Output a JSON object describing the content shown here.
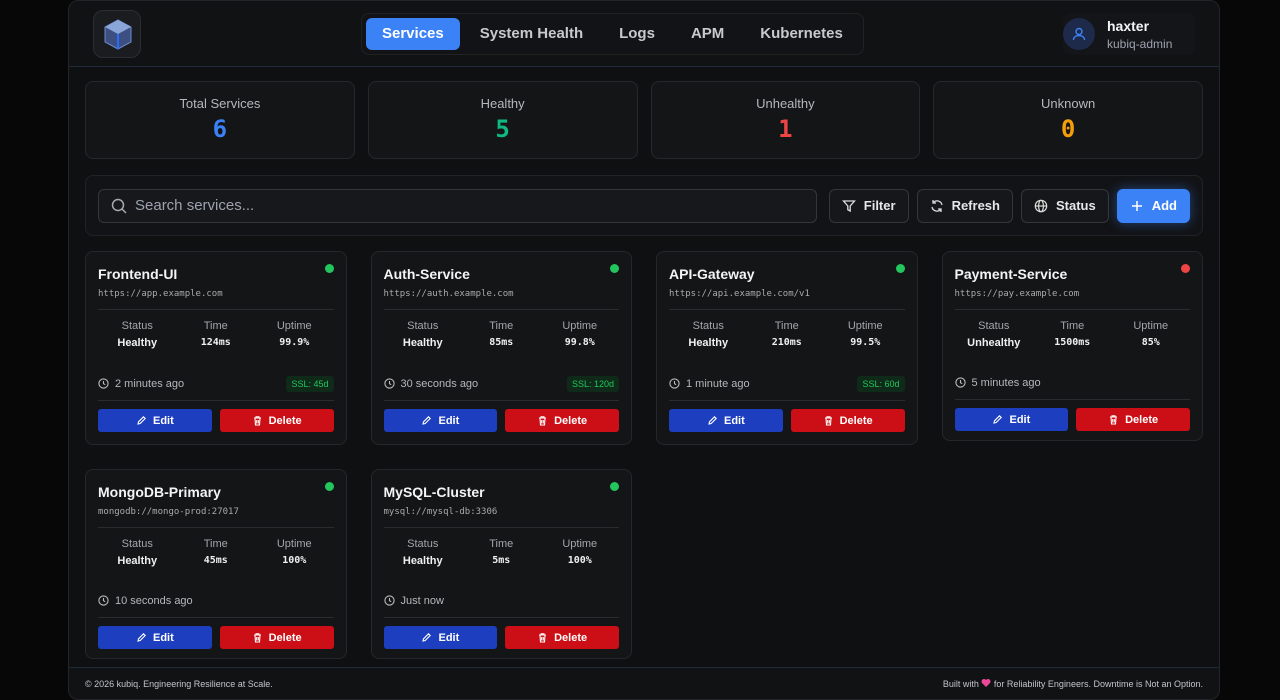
{
  "nav": {
    "tabs": [
      "Services",
      "System Health",
      "Logs",
      "APM",
      "Kubernetes"
    ],
    "active": 0
  },
  "user": {
    "name": "haxter",
    "role": "kubiq-admin"
  },
  "stats": [
    {
      "label": "Total Services",
      "value": "6",
      "color": "#3b82f6"
    },
    {
      "label": "Healthy",
      "value": "5",
      "color": "#10b981"
    },
    {
      "label": "Unhealthy",
      "value": "1",
      "color": "#ef4444"
    },
    {
      "label": "Unknown",
      "value": "0",
      "color": "#f59e0b"
    }
  ],
  "toolbar": {
    "search_placeholder": "Search services...",
    "buttons": [
      "Filter",
      "Refresh",
      "Status",
      "Add"
    ]
  },
  "card_labels": {
    "status": "Status",
    "time": "Time",
    "uptime": "Uptime",
    "edit": "Edit",
    "delete": "Delete"
  },
  "services": [
    {
      "name": "Frontend-UI",
      "url": "https://app.example.com",
      "status": "Healthy",
      "time": "124ms",
      "uptime": "99.9%",
      "last_check": "2 minutes ago",
      "ssl": "SSL: 45d"
    },
    {
      "name": "Auth-Service",
      "url": "https://auth.example.com",
      "status": "Healthy",
      "time": "85ms",
      "uptime": "99.8%",
      "last_check": "30 seconds ago",
      "ssl": "SSL: 120d"
    },
    {
      "name": "API-Gateway",
      "url": "https://api.example.com/v1",
      "status": "Healthy",
      "time": "210ms",
      "uptime": "99.5%",
      "last_check": "1 minute ago",
      "ssl": "SSL: 60d"
    },
    {
      "name": "Payment-Service",
      "url": "https://pay.example.com",
      "status": "Unhealthy",
      "time": "1500ms",
      "uptime": "85%",
      "last_check": "5 minutes ago"
    },
    {
      "name": "MongoDB-Primary",
      "url": "mongodb://mongo-prod:27017",
      "status": "Healthy",
      "time": "45ms",
      "uptime": "100%",
      "last_check": "10 seconds ago"
    },
    {
      "name": "MySQL-Cluster",
      "url": "mysql://mysql-db:3306",
      "status": "Healthy",
      "time": "5ms",
      "uptime": "100%",
      "last_check": "Just now"
    }
  ],
  "footer": {
    "left": "© 2026 kubiq. Engineering Resilience at Scale.",
    "right_before": "Built with",
    "right_after": "for Reliability Engineers. Downtime is Not an Option."
  }
}
